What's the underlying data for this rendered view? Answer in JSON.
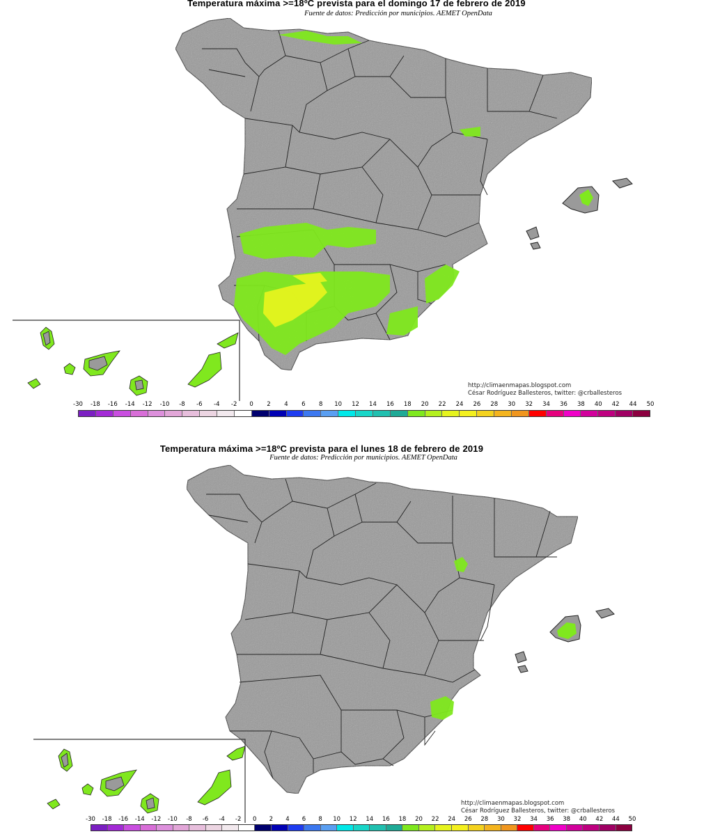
{
  "maps": [
    {
      "title": "Temperatura máxima >=18ºC prevista para el domingo 17 de febrero de 2019",
      "source": "Fuente de datos: Predicción por municipios. AEMET OpenData",
      "credit_url": "http://climaenmapas.blogspot.com",
      "credit_author": "César Rodríguez Ballesteros, twitter: @crballesteros"
    },
    {
      "title": "Temperatura máxima >=18ºC prevista para el lunes 18 de febrero de 2019",
      "source": "Fuente de datos: Predicción por municipios. AEMET OpenData",
      "credit_url": "http://climaenmapas.blogspot.com",
      "credit_author": "César Rodríguez Ballesteros, twitter: @crballesteros"
    }
  ],
  "legend": {
    "labels": [
      "-30",
      "-18",
      "-16",
      "-14",
      "-12",
      "-10",
      "-8",
      "-6",
      "-4",
      "-2",
      "0",
      "2",
      "4",
      "6",
      "8",
      "10",
      "12",
      "14",
      "16",
      "18",
      "20",
      "22",
      "24",
      "26",
      "28",
      "30",
      "32",
      "34",
      "36",
      "38",
      "40",
      "42",
      "44",
      "50"
    ],
    "colors": [
      "#7b1fc2",
      "#a32ad6",
      "#c94ee0",
      "#d86ed8",
      "#dd90dc",
      "#e2a6d8",
      "#e7bedc",
      "#ecd5e2",
      "#f2e9ee",
      "#ffffff",
      "#00006e",
      "#0000b4",
      "#1e3cf0",
      "#3c78f0",
      "#5a9ff2",
      "#00e8e8",
      "#18d6c8",
      "#20c0b0",
      "#1eaa96",
      "#7fe81e",
      "#b4f01e",
      "#e6f41e",
      "#f4f01e",
      "#f4d21e",
      "#f4b41e",
      "#f0961e",
      "#ff0000",
      "#e6007e",
      "#f000c8",
      "#d2009c",
      "#be0080",
      "#a00064",
      "#8c0040"
    ],
    "land_color": "#9a9a9a",
    "highlight_colors": [
      "#80e81e",
      "#c8f01e",
      "#f0f028"
    ]
  }
}
